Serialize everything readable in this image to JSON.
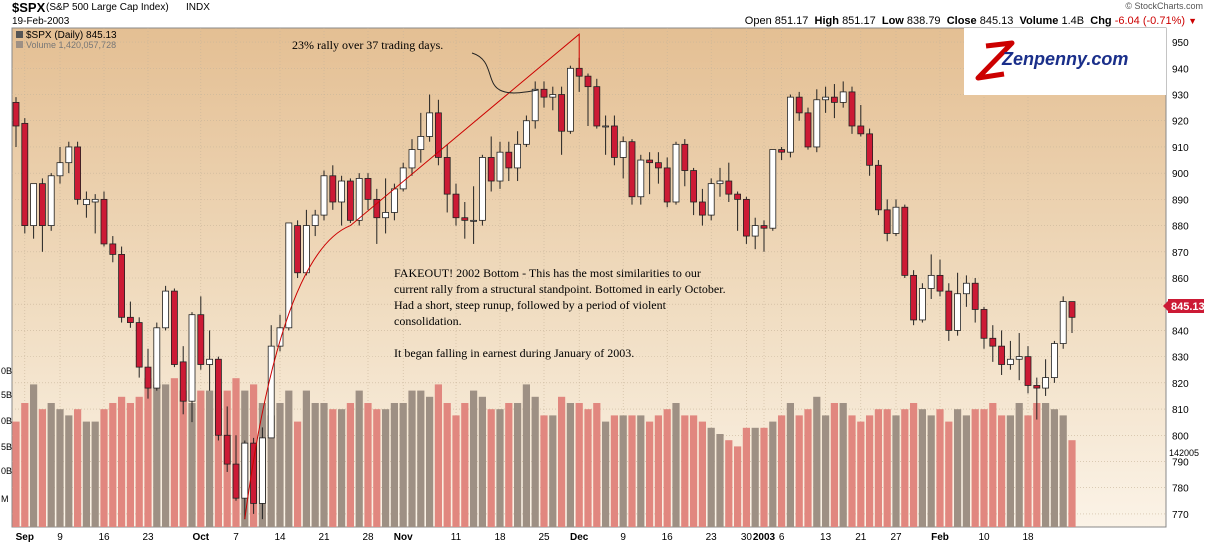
{
  "header": {
    "symbol": "$SPX",
    "description": "(S&P 500 Large Cap Index)",
    "exchange": "INDX",
    "watermark": "© StockCharts.com",
    "date": "19-Feb-2003",
    "open_label": "Open",
    "open": "851.17",
    "high_label": "High",
    "high": "851.17",
    "low_label": "Low",
    "low": "838.79",
    "close_label": "Close",
    "close": "845.13",
    "volume_label": "Volume",
    "volume": "1.4B",
    "chg_label": "Chg",
    "chg": "-6.04 (-0.71%)"
  },
  "legend": {
    "price": "$SPX (Daily) 845.13",
    "volume": "Volume 1,420,057,728"
  },
  "logo_text": "Zenpenny.com",
  "annotations": {
    "rally": "23% rally over 37 trading days.",
    "fakeout": [
      "FAKEOUT! 2002 Bottom - This has the most similarities to our",
      "current rally from a structural standpoint. Bottomed in early October.",
      "Had a short, steep runup, followed by a period of violent",
      "consolidation.",
      "",
      "It began falling in earnest during January of 2003."
    ]
  },
  "colors": {
    "up": "#ffffff",
    "down": "#cc1a35",
    "wick": "#222222",
    "vol_up": "#9e9084",
    "vol_down": "#e1877f",
    "trend": "#cc0000",
    "last_price_box": "#cc1a35"
  },
  "chart_data": {
    "type": "candlestick",
    "ylim": [
      765,
      955
    ],
    "yticks": [
      770,
      780,
      790,
      800,
      810,
      820,
      830,
      840,
      850,
      860,
      870,
      880,
      890,
      900,
      910,
      920,
      930,
      940,
      950
    ],
    "last_price": "845.13",
    "volume_ticks": [
      {
        "label": "0B",
        "value": 1600000000
      },
      {
        "label": "5B",
        "value": 2000000000
      },
      {
        "label": "0B",
        "value": 2400000000
      },
      {
        "label": "5B",
        "value": 2800000000
      },
      {
        "label": "0B",
        "value": 3200000000
      },
      {
        "label": "M",
        "value": 3600000000
      }
    ],
    "volume_right_label": "142005",
    "x_labels": [
      {
        "label": "Sep",
        "i": 1,
        "bold": true
      },
      {
        "label": "9",
        "i": 5
      },
      {
        "label": "16",
        "i": 10
      },
      {
        "label": "23",
        "i": 15
      },
      {
        "label": "Oct",
        "i": 21,
        "bold": true
      },
      {
        "label": "7",
        "i": 25
      },
      {
        "label": "14",
        "i": 30
      },
      {
        "label": "21",
        "i": 35
      },
      {
        "label": "28",
        "i": 40
      },
      {
        "label": "Nov",
        "i": 44,
        "bold": true
      },
      {
        "label": "11",
        "i": 50
      },
      {
        "label": "18",
        "i": 55
      },
      {
        "label": "25",
        "i": 60
      },
      {
        "label": "Dec",
        "i": 64,
        "bold": true
      },
      {
        "label": "9",
        "i": 69
      },
      {
        "label": "16",
        "i": 74
      },
      {
        "label": "23",
        "i": 79
      },
      {
        "label": "30",
        "i": 83
      },
      {
        "label": "2003",
        "i": 85,
        "bold": true
      },
      {
        "label": "6",
        "i": 87
      },
      {
        "label": "13",
        "i": 92
      },
      {
        "label": "21",
        "i": 96
      },
      {
        "label": "27",
        "i": 100
      },
      {
        "label": "Feb",
        "i": 105,
        "bold": true
      },
      {
        "label": "10",
        "i": 110
      },
      {
        "label": "18",
        "i": 115
      }
    ],
    "candles": [
      {
        "o": 927,
        "h": 929,
        "l": 910,
        "c": 918,
        "v": 1.7
      },
      {
        "o": 919,
        "h": 921,
        "l": 877,
        "c": 880,
        "v": 2.0
      },
      {
        "o": 880,
        "h": 895,
        "l": 875,
        "c": 896,
        "v": 2.3
      },
      {
        "o": 896,
        "h": 898,
        "l": 870,
        "c": 880,
        "v": 1.9
      },
      {
        "o": 880,
        "h": 900,
        "l": 878,
        "c": 899,
        "v": 2.0
      },
      {
        "o": 899,
        "h": 910,
        "l": 896,
        "c": 904,
        "v": 1.9
      },
      {
        "o": 904,
        "h": 912,
        "l": 900,
        "c": 910,
        "v": 1.8
      },
      {
        "o": 910,
        "h": 912,
        "l": 888,
        "c": 890,
        "v": 1.9
      },
      {
        "o": 888,
        "h": 893,
        "l": 883,
        "c": 890,
        "v": 1.7
      },
      {
        "o": 889,
        "h": 892,
        "l": 877,
        "c": 890,
        "v": 1.7
      },
      {
        "o": 890,
        "h": 893,
        "l": 872,
        "c": 873,
        "v": 1.9
      },
      {
        "o": 873,
        "h": 876,
        "l": 866,
        "c": 869,
        "v": 2.0
      },
      {
        "o": 869,
        "h": 872,
        "l": 843,
        "c": 845,
        "v": 2.1
      },
      {
        "o": 845,
        "h": 851,
        "l": 841,
        "c": 843,
        "v": 2.0
      },
      {
        "o": 843,
        "h": 845,
        "l": 822,
        "c": 826,
        "v": 2.1
      },
      {
        "o": 826,
        "h": 833,
        "l": 814,
        "c": 818,
        "v": 2.4
      },
      {
        "o": 818,
        "h": 843,
        "l": 817,
        "c": 841,
        "v": 2.3
      },
      {
        "o": 841,
        "h": 857,
        "l": 840,
        "c": 855,
        "v": 2.3
      },
      {
        "o": 855,
        "h": 856,
        "l": 826,
        "c": 827,
        "v": 2.4
      },
      {
        "o": 828,
        "h": 834,
        "l": 808,
        "c": 813,
        "v": 2.2
      },
      {
        "o": 813,
        "h": 847,
        "l": 805,
        "c": 846,
        "v": 2.0
      },
      {
        "o": 846,
        "h": 853,
        "l": 825,
        "c": 827,
        "v": 2.2
      },
      {
        "o": 827,
        "h": 840,
        "l": 817,
        "c": 829,
        "v": 2.2
      },
      {
        "o": 829,
        "h": 830,
        "l": 798,
        "c": 800,
        "v": 2.2
      },
      {
        "o": 800,
        "h": 811,
        "l": 786,
        "c": 789,
        "v": 2.2
      },
      {
        "o": 789,
        "h": 800,
        "l": 775,
        "c": 776,
        "v": 2.4
      },
      {
        "o": 776,
        "h": 798,
        "l": 768,
        "c": 797,
        "v": 2.2
      },
      {
        "o": 797,
        "h": 799,
        "l": 770,
        "c": 774,
        "v": 2.3
      },
      {
        "o": 774,
        "h": 803,
        "l": 768,
        "c": 799,
        "v": 2.0
      },
      {
        "o": 799,
        "h": 842,
        "l": 799,
        "c": 834,
        "v": 1.8
      },
      {
        "o": 834,
        "h": 846,
        "l": 832,
        "c": 841,
        "v": 2.0
      },
      {
        "o": 841,
        "h": 881,
        "l": 840,
        "c": 881,
        "v": 2.2
      },
      {
        "o": 880,
        "h": 882,
        "l": 860,
        "c": 862,
        "v": 1.7
      },
      {
        "o": 862,
        "h": 886,
        "l": 861,
        "c": 880,
        "v": 2.2
      },
      {
        "o": 880,
        "h": 886,
        "l": 876,
        "c": 884,
        "v": 2.0
      },
      {
        "o": 884,
        "h": 901,
        "l": 882,
        "c": 899,
        "v": 2.0
      },
      {
        "o": 899,
        "h": 903,
        "l": 886,
        "c": 889,
        "v": 1.9
      },
      {
        "o": 889,
        "h": 899,
        "l": 880,
        "c": 897,
        "v": 1.9
      },
      {
        "o": 897,
        "h": 898,
        "l": 881,
        "c": 882,
        "v": 2.0
      },
      {
        "o": 882,
        "h": 900,
        "l": 880,
        "c": 898,
        "v": 2.2
      },
      {
        "o": 898,
        "h": 900,
        "l": 886,
        "c": 890,
        "v": 2.0
      },
      {
        "o": 890,
        "h": 894,
        "l": 873,
        "c": 883,
        "v": 1.9
      },
      {
        "o": 883,
        "h": 898,
        "l": 877,
        "c": 885,
        "v": 1.9
      },
      {
        "o": 885,
        "h": 896,
        "l": 882,
        "c": 894,
        "v": 2.0
      },
      {
        "o": 894,
        "h": 904,
        "l": 893,
        "c": 902,
        "v": 2.0
      },
      {
        "o": 902,
        "h": 913,
        "l": 899,
        "c": 909,
        "v": 2.2
      },
      {
        "o": 909,
        "h": 923,
        "l": 904,
        "c": 914,
        "v": 2.2
      },
      {
        "o": 914,
        "h": 930,
        "l": 912,
        "c": 923,
        "v": 2.1
      },
      {
        "o": 923,
        "h": 928,
        "l": 903,
        "c": 906,
        "v": 2.3
      },
      {
        "o": 906,
        "h": 911,
        "l": 885,
        "c": 892,
        "v": 2.0
      },
      {
        "o": 892,
        "h": 896,
        "l": 880,
        "c": 883,
        "v": 1.8
      },
      {
        "o": 883,
        "h": 889,
        "l": 875,
        "c": 882,
        "v": 2.0
      },
      {
        "o": 882,
        "h": 895,
        "l": 873,
        "c": 882,
        "v": 2.2
      },
      {
        "o": 882,
        "h": 907,
        "l": 880,
        "c": 906,
        "v": 2.1
      },
      {
        "o": 906,
        "h": 914,
        "l": 893,
        "c": 897,
        "v": 1.9
      },
      {
        "o": 897,
        "h": 912,
        "l": 894,
        "c": 908,
        "v": 1.9
      },
      {
        "o": 908,
        "h": 912,
        "l": 897,
        "c": 902,
        "v": 2.0
      },
      {
        "o": 902,
        "h": 916,
        "l": 897,
        "c": 911,
        "v": 2.0
      },
      {
        "o": 911,
        "h": 922,
        "l": 910,
        "c": 920,
        "v": 2.3
      },
      {
        "o": 920,
        "h": 935,
        "l": 917,
        "c": 932,
        "v": 2.1
      },
      {
        "o": 932,
        "h": 935,
        "l": 925,
        "c": 929,
        "v": 1.8
      },
      {
        "o": 929,
        "h": 933,
        "l": 924,
        "c": 930,
        "v": 1.8
      },
      {
        "o": 930,
        "h": 933,
        "l": 907,
        "c": 916,
        "v": 2.1
      },
      {
        "o": 916,
        "h": 941,
        "l": 915,
        "c": 940,
        "v": 2.0
      },
      {
        "o": 940,
        "h": 944,
        "l": 931,
        "c": 937,
        "v": 2.0
      },
      {
        "o": 937,
        "h": 938,
        "l": 918,
        "c": 933,
        "v": 1.9
      },
      {
        "o": 933,
        "h": 936,
        "l": 917,
        "c": 918,
        "v": 2.0
      },
      {
        "o": 918,
        "h": 922,
        "l": 907,
        "c": 918,
        "v": 1.7
      },
      {
        "o": 918,
        "h": 922,
        "l": 903,
        "c": 906,
        "v": 1.8
      },
      {
        "o": 906,
        "h": 914,
        "l": 898,
        "c": 912,
        "v": 1.8
      },
      {
        "o": 912,
        "h": 913,
        "l": 888,
        "c": 891,
        "v": 1.8
      },
      {
        "o": 891,
        "h": 907,
        "l": 888,
        "c": 905,
        "v": 1.8
      },
      {
        "o": 905,
        "h": 908,
        "l": 892,
        "c": 904,
        "v": 1.7
      },
      {
        "o": 904,
        "h": 908,
        "l": 896,
        "c": 902,
        "v": 1.8
      },
      {
        "o": 902,
        "h": 906,
        "l": 887,
        "c": 889,
        "v": 1.9
      },
      {
        "o": 889,
        "h": 912,
        "l": 888,
        "c": 911,
        "v": 2.0
      },
      {
        "o": 911,
        "h": 913,
        "l": 895,
        "c": 901,
        "v": 1.8
      },
      {
        "o": 901,
        "h": 902,
        "l": 884,
        "c": 889,
        "v": 1.8
      },
      {
        "o": 889,
        "h": 894,
        "l": 880,
        "c": 884,
        "v": 1.7
      },
      {
        "o": 884,
        "h": 898,
        "l": 882,
        "c": 896,
        "v": 1.6
      },
      {
        "o": 896,
        "h": 902,
        "l": 891,
        "c": 897,
        "v": 1.5
      },
      {
        "o": 897,
        "h": 904,
        "l": 889,
        "c": 892,
        "v": 1.4
      },
      {
        "o": 892,
        "h": 893,
        "l": 878,
        "c": 890,
        "v": 1.3
      },
      {
        "o": 890,
        "h": 891,
        "l": 873,
        "c": 876,
        "v": 1.6
      },
      {
        "o": 876,
        "h": 883,
        "l": 871,
        "c": 880,
        "v": 1.6
      },
      {
        "o": 880,
        "h": 882,
        "l": 870,
        "c": 879,
        "v": 1.6
      },
      {
        "o": 879,
        "h": 909,
        "l": 878,
        "c": 909,
        "v": 1.7
      },
      {
        "o": 909,
        "h": 910,
        "l": 905,
        "c": 908,
        "v": 1.8
      },
      {
        "o": 908,
        "h": 930,
        "l": 906,
        "c": 929,
        "v": 2.0
      },
      {
        "o": 929,
        "h": 931,
        "l": 920,
        "c": 923,
        "v": 1.8
      },
      {
        "o": 923,
        "h": 925,
        "l": 909,
        "c": 910,
        "v": 1.9
      },
      {
        "o": 910,
        "h": 932,
        "l": 908,
        "c": 928,
        "v": 2.1
      },
      {
        "o": 928,
        "h": 933,
        "l": 923,
        "c": 929,
        "v": 1.8
      },
      {
        "o": 929,
        "h": 934,
        "l": 921,
        "c": 927,
        "v": 2.0
      },
      {
        "o": 927,
        "h": 935,
        "l": 925,
        "c": 931,
        "v": 2.0
      },
      {
        "o": 931,
        "h": 933,
        "l": 915,
        "c": 918,
        "v": 1.8
      },
      {
        "o": 918,
        "h": 926,
        "l": 914,
        "c": 915,
        "v": 1.7
      },
      {
        "o": 915,
        "h": 917,
        "l": 899,
        "c": 903,
        "v": 1.8
      },
      {
        "o": 903,
        "h": 905,
        "l": 884,
        "c": 886,
        "v": 1.9
      },
      {
        "o": 886,
        "h": 890,
        "l": 874,
        "c": 877,
        "v": 1.9
      },
      {
        "o": 877,
        "h": 890,
        "l": 876,
        "c": 887,
        "v": 1.8
      },
      {
        "o": 887,
        "h": 888,
        "l": 860,
        "c": 861,
        "v": 1.9
      },
      {
        "o": 861,
        "h": 863,
        "l": 842,
        "c": 844,
        "v": 2.0
      },
      {
        "o": 844,
        "h": 858,
        "l": 843,
        "c": 856,
        "v": 1.9
      },
      {
        "o": 856,
        "h": 869,
        "l": 852,
        "c": 861,
        "v": 1.8
      },
      {
        "o": 861,
        "h": 867,
        "l": 853,
        "c": 855,
        "v": 1.9
      },
      {
        "o": 855,
        "h": 858,
        "l": 836,
        "c": 840,
        "v": 1.7
      },
      {
        "o": 840,
        "h": 862,
        "l": 838,
        "c": 854,
        "v": 1.9
      },
      {
        "o": 854,
        "h": 861,
        "l": 849,
        "c": 858,
        "v": 1.8
      },
      {
        "o": 858,
        "h": 860,
        "l": 843,
        "c": 848,
        "v": 1.9
      },
      {
        "o": 848,
        "h": 849,
        "l": 833,
        "c": 837,
        "v": 1.9
      },
      {
        "o": 837,
        "h": 842,
        "l": 828,
        "c": 834,
        "v": 2.0
      },
      {
        "o": 834,
        "h": 840,
        "l": 823,
        "c": 827,
        "v": 1.8
      },
      {
        "o": 827,
        "h": 836,
        "l": 825,
        "c": 829,
        "v": 1.8
      },
      {
        "o": 829,
        "h": 839,
        "l": 821,
        "c": 830,
        "v": 2.0
      },
      {
        "o": 830,
        "h": 834,
        "l": 816,
        "c": 819,
        "v": 1.8
      },
      {
        "o": 819,
        "h": 822,
        "l": 806,
        "c": 818,
        "v": 2.0
      },
      {
        "o": 818,
        "h": 829,
        "l": 815,
        "c": 822,
        "v": 2.0
      },
      {
        "o": 822,
        "h": 836,
        "l": 820,
        "c": 835,
        "v": 1.9
      },
      {
        "o": 835,
        "h": 853,
        "l": 833,
        "c": 851,
        "v": 1.8
      },
      {
        "o": 851,
        "h": 851,
        "l": 839,
        "c": 845,
        "v": 1.4
      }
    ]
  }
}
